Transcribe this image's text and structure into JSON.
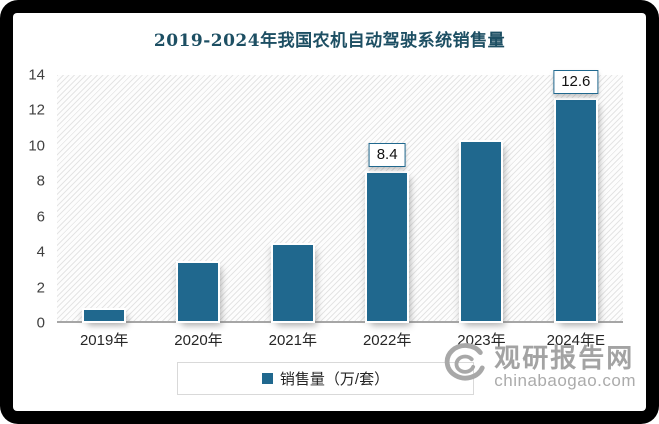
{
  "title": "2019-2024年我国农机自动驾驶系统销售量",
  "title_color": "#1d4f63",
  "chart_data": {
    "type": "bar",
    "title": "2019-2024年我国农机自动驾驶系统销售量",
    "categories": [
      "2019年",
      "2020年",
      "2021年",
      "2022年",
      "2023年",
      "2024年E"
    ],
    "values": [
      0.65,
      3.3,
      4.3,
      8.4,
      10.2,
      12.6
    ],
    "data_labels": [
      null,
      null,
      null,
      "8.4",
      null,
      "12.6"
    ],
    "series_name": "销售量（万/套）",
    "xlabel": "",
    "ylabel": "",
    "ylim": [
      0,
      14
    ],
    "yticks": [
      "0",
      "2",
      "4",
      "6",
      "8",
      "10",
      "12",
      "14"
    ],
    "grid": false,
    "legend_position": "bottom",
    "bar_color": "#20688e"
  },
  "legend": {
    "label": "销售量（万/套）"
  },
  "watermark": {
    "logo": "swirl-icon",
    "name": "观研报告网",
    "site": "chinabaogao.com"
  },
  "colors": {
    "bar": "#20688e",
    "label_box_border": "#20688e",
    "axis_line": "#a6a6a6",
    "axis_text": "#404040",
    "watermark_gray": "#a8a8a8"
  }
}
